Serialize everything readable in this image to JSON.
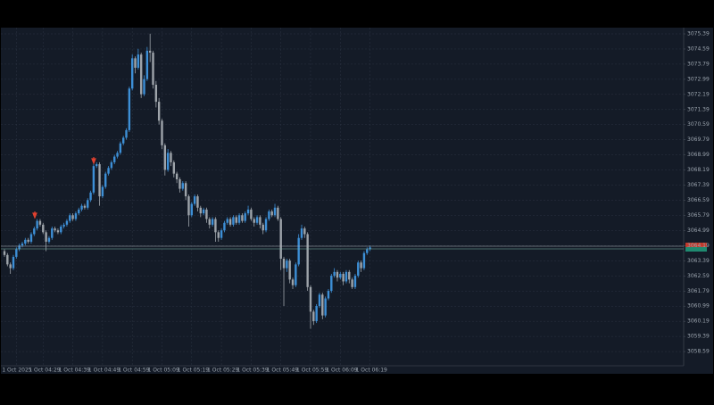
{
  "chart_data": {
    "type": "candlestick",
    "up_color": "#3d8fd6",
    "down_color": "#9ea4aa",
    "grid": true,
    "ylim": [
      3057.84,
      3075.72
    ],
    "yticks": [
      3075.39,
      3074.59,
      3073.79,
      3072.99,
      3072.19,
      3071.39,
      3070.59,
      3069.79,
      3068.99,
      3068.19,
      3067.39,
      3066.59,
      3065.79,
      3064.99,
      3064.19,
      3063.39,
      3062.59,
      3061.79,
      3060.99,
      3060.19,
      3059.39,
      3058.59
    ],
    "categories": [
      null,
      null,
      null,
      null,
      "1 Oct 2025",
      null,
      null,
      null,
      null,
      null,
      null,
      null,
      null,
      "1 Oct 04:29",
      null,
      null,
      null,
      null,
      null,
      null,
      null,
      null,
      null,
      "1 Oct 04:39",
      null,
      null,
      null,
      null,
      null,
      null,
      null,
      null,
      null,
      "1 Oct 04:49",
      null,
      null,
      null,
      null,
      null,
      null,
      null,
      null,
      null,
      "1 Oct 04:59",
      null,
      null,
      null,
      null,
      null,
      null,
      null,
      null,
      null,
      "1 Oct 05:09",
      null,
      null,
      null,
      null,
      null,
      null,
      null,
      null,
      null,
      "1 Oct 05:19",
      null,
      null,
      null,
      null,
      null,
      null,
      null,
      null,
      null,
      "1 Oct 05:29",
      null,
      null,
      null,
      null,
      null,
      null,
      null,
      null,
      null,
      "1 Oct 05:39",
      null,
      null,
      null,
      null,
      null,
      null,
      null,
      null,
      null,
      "1 Oct 05:49",
      null,
      null,
      null,
      null,
      null,
      null,
      null,
      null,
      null,
      "1 Oct 05:59",
      null,
      null,
      null,
      null,
      null,
      null,
      null,
      null,
      null,
      "1 Oct 06:09",
      null,
      null,
      null,
      null,
      null,
      null,
      null,
      null,
      null,
      "1 Oct 06:19"
    ],
    "open": [
      3063.9,
      3063.7,
      3063.2,
      3063.0,
      3063.6,
      3064.0,
      3064.2,
      3064.3,
      3064.5,
      3064.4,
      3064.8,
      3065.1,
      3065.5,
      3065.3,
      3064.9,
      3064.4,
      3064.6,
      3065.1,
      3065.0,
      3064.9,
      3065.2,
      3065.3,
      3065.5,
      3065.8,
      3065.6,
      3065.9,
      3066.1,
      3066.3,
      3066.2,
      3066.6,
      3067.0,
      3068.4,
      3068.5,
      3066.8,
      3067.3,
      3068.0,
      3068.3,
      3068.6,
      3068.9,
      3069.1,
      3069.6,
      3069.9,
      3070.3,
      3072.5,
      3074.1,
      3073.6,
      3074.3,
      3072.2,
      3073.0,
      3074.5,
      3074.4,
      3072.7,
      3071.8,
      3070.8,
      3069.5,
      3068.2,
      3069.1,
      3068.6,
      3068.0,
      3067.7,
      3067.2,
      3067.5,
      3066.8,
      3065.8,
      3066.4,
      3066.8,
      3066.2,
      3065.9,
      3066.1,
      3065.6,
      3065.3,
      3065.6,
      3064.9,
      3064.6,
      3065.0,
      3065.4,
      3065.6,
      3065.3,
      3065.7,
      3065.4,
      3065.8,
      3065.5,
      3065.9,
      3066.1,
      3065.6,
      3065.4,
      3065.7,
      3065.3,
      3065.0,
      3065.6,
      3066.0,
      3065.8,
      3066.2,
      3065.6,
      3063.5,
      3063.0,
      3063.4,
      3062.4,
      3062.1,
      3063.2,
      3064.6,
      3065.1,
      3064.8,
      3062.0,
      3060.7,
      3060.2,
      3061.0,
      3061.6,
      3060.5,
      3061.4,
      3061.8,
      3062.6,
      3062.8,
      3062.5,
      3062.7,
      3062.3,
      3062.8,
      3062.4,
      3062.0,
      3062.6,
      3063.3,
      3063.0,
      3063.8,
      3064.0
    ],
    "high": [
      3064.0,
      3063.8,
      3063.3,
      3063.7,
      3064.1,
      3064.3,
      3064.4,
      3064.6,
      3064.6,
      3064.9,
      3065.2,
      3065.6,
      3065.6,
      3065.4,
      3065.0,
      3064.7,
      3065.2,
      3065.2,
      3065.1,
      3065.3,
      3065.4,
      3065.6,
      3065.9,
      3065.9,
      3066.0,
      3066.2,
      3066.4,
      3066.4,
      3066.7,
      3067.1,
      3068.6,
      3068.6,
      3068.6,
      3067.4,
      3068.1,
      3068.4,
      3068.7,
      3069.0,
      3069.2,
      3069.7,
      3070.0,
      3070.4,
      3072.6,
      3074.3,
      3074.2,
      3074.6,
      3074.4,
      3073.2,
      3074.7,
      3075.4,
      3074.5,
      3072.9,
      3072.0,
      3070.9,
      3069.6,
      3069.3,
      3069.2,
      3068.7,
      3068.1,
      3067.8,
      3067.6,
      3067.6,
      3066.9,
      3066.5,
      3066.9,
      3066.9,
      3066.3,
      3066.2,
      3066.2,
      3065.7,
      3065.7,
      3065.7,
      3065.0,
      3065.1,
      3065.5,
      3065.7,
      3065.7,
      3065.8,
      3065.8,
      3065.9,
      3065.9,
      3066.0,
      3066.3,
      3066.2,
      3065.7,
      3065.8,
      3065.8,
      3065.4,
      3065.7,
      3066.1,
      3066.1,
      3066.4,
      3066.3,
      3065.7,
      3063.6,
      3063.5,
      3063.5,
      3062.5,
      3063.3,
      3064.8,
      3065.3,
      3065.2,
      3064.9,
      3062.1,
      3060.8,
      3061.1,
      3061.7,
      3061.7,
      3061.5,
      3061.9,
      3062.7,
      3063.0,
      3062.9,
      3062.8,
      3062.8,
      3062.9,
      3062.9,
      3062.5,
      3062.7,
      3063.4,
      3063.4,
      3063.9,
      3064.1,
      3064.2
    ],
    "low": [
      3063.6,
      3063.1,
      3062.7,
      3062.9,
      3063.5,
      3063.9,
      3064.1,
      3064.2,
      3064.3,
      3064.3,
      3064.7,
      3065.0,
      3065.2,
      3064.8,
      3063.9,
      3064.3,
      3064.5,
      3064.9,
      3064.8,
      3064.8,
      3065.1,
      3065.2,
      3065.4,
      3065.5,
      3065.5,
      3065.8,
      3066.0,
      3066.1,
      3066.1,
      3066.5,
      3066.9,
      3068.3,
      3066.3,
      3066.7,
      3067.2,
      3067.9,
      3068.2,
      3068.5,
      3068.8,
      3069.0,
      3069.5,
      3069.8,
      3070.2,
      3072.4,
      3073.3,
      3073.5,
      3072.0,
      3072.1,
      3072.9,
      3073.9,
      3072.5,
      3071.5,
      3070.6,
      3069.3,
      3067.9,
      3068.1,
      3068.4,
      3067.8,
      3067.5,
      3067.0,
      3067.1,
      3066.6,
      3065.2,
      3065.7,
      3066.3,
      3066.0,
      3065.7,
      3065.8,
      3065.4,
      3065.1,
      3065.2,
      3064.4,
      3064.4,
      3064.5,
      3064.9,
      3065.3,
      3065.2,
      3065.2,
      3065.3,
      3065.3,
      3065.4,
      3065.4,
      3065.8,
      3065.5,
      3065.2,
      3065.3,
      3065.1,
      3064.8,
      3064.9,
      3065.5,
      3065.7,
      3065.7,
      3065.5,
      3062.9,
      3061.0,
      3062.8,
      3062.2,
      3061.9,
      3062.0,
      3063.1,
      3064.5,
      3064.6,
      3061.8,
      3059.8,
      3060.0,
      3060.1,
      3060.9,
      3060.3,
      3060.4,
      3061.3,
      3061.7,
      3062.5,
      3062.3,
      3062.4,
      3062.1,
      3062.2,
      3062.2,
      3061.9,
      3061.9,
      3062.5,
      3062.8,
      3062.9,
      3063.7,
      3063.9
    ],
    "close": [
      3063.7,
      3063.2,
      3063.0,
      3063.6,
      3064.0,
      3064.2,
      3064.3,
      3064.5,
      3064.4,
      3064.8,
      3065.1,
      3065.5,
      3065.3,
      3064.9,
      3064.4,
      3064.6,
      3065.1,
      3065.0,
      3064.9,
      3065.2,
      3065.3,
      3065.5,
      3065.8,
      3065.6,
      3065.9,
      3066.1,
      3066.3,
      3066.2,
      3066.6,
      3067.0,
      3068.4,
      3068.5,
      3066.8,
      3067.3,
      3068.0,
      3068.3,
      3068.6,
      3068.9,
      3069.1,
      3069.6,
      3069.9,
      3070.3,
      3072.5,
      3074.1,
      3073.6,
      3074.3,
      3072.2,
      3073.0,
      3074.5,
      3074.4,
      3072.7,
      3071.8,
      3070.8,
      3069.5,
      3068.2,
      3069.1,
      3068.6,
      3068.0,
      3067.7,
      3067.2,
      3067.5,
      3066.8,
      3065.8,
      3066.4,
      3066.8,
      3066.2,
      3065.9,
      3066.1,
      3065.6,
      3065.3,
      3065.6,
      3064.9,
      3064.6,
      3065.0,
      3065.4,
      3065.6,
      3065.3,
      3065.7,
      3065.4,
      3065.8,
      3065.5,
      3065.9,
      3066.1,
      3065.6,
      3065.4,
      3065.7,
      3065.3,
      3065.0,
      3065.6,
      3066.0,
      3065.8,
      3066.2,
      3065.6,
      3063.5,
      3063.0,
      3063.4,
      3062.4,
      3062.1,
      3063.2,
      3064.6,
      3065.1,
      3064.8,
      3062.0,
      3060.7,
      3060.2,
      3061.0,
      3061.6,
      3060.5,
      3061.4,
      3061.8,
      3062.6,
      3062.8,
      3062.5,
      3062.7,
      3062.3,
      3062.8,
      3062.4,
      3062.0,
      3062.6,
      3063.3,
      3063.0,
      3063.8,
      3064.0,
      3064.1
    ]
  }
}
